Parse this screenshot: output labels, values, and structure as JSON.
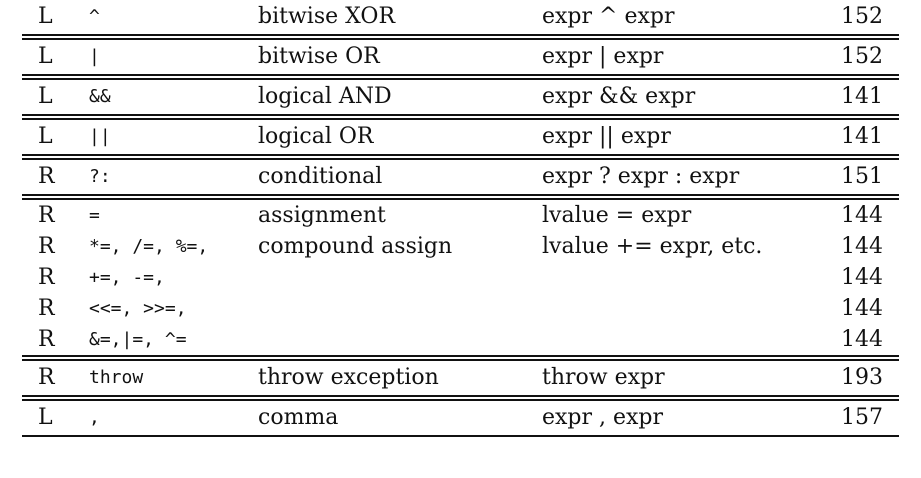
{
  "table": {
    "groups": [
      {
        "rows": [
          {
            "assoc": "L",
            "operator": "^",
            "function_prefix": "bitwise ",
            "function_sc": "XOR",
            "use": "expr ^ expr",
            "page": "152"
          }
        ]
      },
      {
        "rows": [
          {
            "assoc": "L",
            "operator": "|",
            "function_prefix": "bitwise ",
            "function_sc": "OR",
            "use": "expr | expr",
            "page": "152"
          }
        ]
      },
      {
        "rows": [
          {
            "assoc": "L",
            "operator": "&&",
            "function_prefix": "logical ",
            "function_sc": "AND",
            "use": "expr && expr",
            "page": "141"
          }
        ]
      },
      {
        "rows": [
          {
            "assoc": "L",
            "operator": "||",
            "function_prefix": "logical ",
            "function_sc": "OR",
            "use": "expr || expr",
            "page": "141"
          }
        ]
      },
      {
        "rows": [
          {
            "assoc": "R",
            "operator": "?:",
            "function_prefix": "conditional",
            "function_sc": "",
            "use": "expr ? expr : expr",
            "page": "151"
          }
        ]
      },
      {
        "rows": [
          {
            "assoc": "R",
            "operator": "=",
            "function_prefix": "assignment",
            "function_sc": "",
            "use": "lvalue = expr",
            "page": "144"
          },
          {
            "assoc": "R",
            "operator": "*=, /=, %=,",
            "function_prefix": "compound assign",
            "function_sc": "",
            "use": "lvalue += expr, etc.",
            "page": "144"
          },
          {
            "assoc": "R",
            "operator": "+=, -=,",
            "function_prefix": "",
            "function_sc": "",
            "use": "",
            "page": "144"
          },
          {
            "assoc": "R",
            "operator": "<<=, >>=,",
            "function_prefix": "",
            "function_sc": "",
            "use": "",
            "page": "144"
          },
          {
            "assoc": "R",
            "operator": "&=,|=, ^=",
            "function_prefix": "",
            "function_sc": "",
            "use": "",
            "page": "144"
          }
        ]
      },
      {
        "rows": [
          {
            "assoc": "R",
            "operator": "throw",
            "function_prefix": "throw exception",
            "function_sc": "",
            "use": "throw expr",
            "page": "193"
          }
        ]
      },
      {
        "rows": [
          {
            "assoc": "L",
            "operator": ",",
            "function_prefix": "comma",
            "function_sc": "",
            "use": "expr , expr",
            "page": "157"
          }
        ]
      }
    ]
  }
}
